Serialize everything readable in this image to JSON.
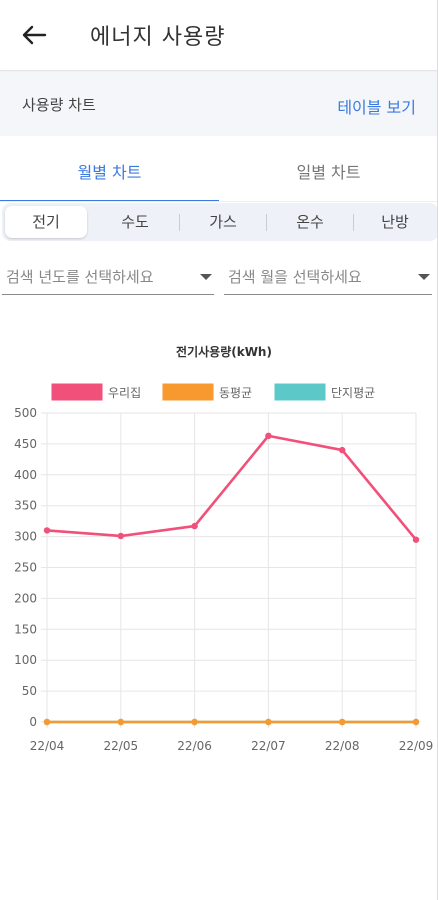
{
  "header": {
    "title": "에너지 사용량",
    "back_icon": "arrow-left-icon"
  },
  "subheader": {
    "label": "사용량 차트",
    "action": "테이블 보기"
  },
  "tabs": [
    {
      "label": "월별 차트",
      "active": true
    },
    {
      "label": "일별 차트",
      "active": false
    }
  ],
  "segments": [
    {
      "label": "전기",
      "active": true
    },
    {
      "label": "수도",
      "active": false
    },
    {
      "label": "가스",
      "active": false
    },
    {
      "label": "온수",
      "active": false
    },
    {
      "label": "난방",
      "active": false
    }
  ],
  "filters": {
    "year_placeholder": "검색 년도를 선택하세요",
    "month_placeholder": "검색 월을 선택하세요"
  },
  "colors": {
    "accent": "#3b7be0",
    "series_home": "#f0507a",
    "series_dong": "#f7992f",
    "series_complex": "#5cc8c8"
  },
  "chart_data": {
    "type": "line",
    "title": "전기사용량(kWh)",
    "categories": [
      "22/04",
      "22/05",
      "22/06",
      "22/07",
      "22/08",
      "22/09"
    ],
    "series": [
      {
        "name": "우리집",
        "values": [
          310,
          301,
          317,
          463,
          440,
          295
        ],
        "color": "#f0507a"
      },
      {
        "name": "동평균",
        "values": [
          0,
          0,
          0,
          0,
          0,
          0
        ],
        "color": "#f7992f"
      },
      {
        "name": "단지평균",
        "values": [
          0,
          0,
          0,
          0,
          0,
          0
        ],
        "color": "#5cc8c8"
      }
    ],
    "ylim": [
      0,
      500
    ],
    "yticks": [
      "500",
      "450",
      "400",
      "350",
      "300",
      "250",
      "200",
      "150",
      "100",
      "50",
      "0"
    ],
    "grid": true,
    "legend": "top"
  }
}
